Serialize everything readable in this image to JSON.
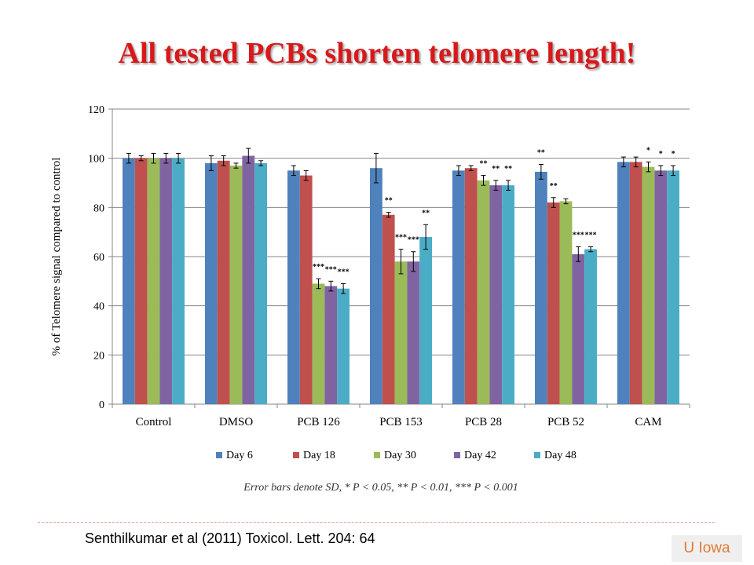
{
  "slide": {
    "title": "All tested PCBs shorten telomere length!",
    "note": "Error bars denote SD,   * P < 0.05, ** P < 0.01, *** P < 0.001",
    "citation": "Senthilkumar et al (2011) Toxicol. Lett. 204: 64",
    "badge": "U Iowa",
    "title_color": "#d7191c",
    "badge_color": "#e07a35"
  },
  "chart_data": {
    "type": "bar",
    "categories": [
      "Control",
      "DMSO",
      "PCB 126",
      "PCB 153",
      "PCB 28",
      "PCB 52",
      "CAM"
    ],
    "ylabel": "% of Telomere signal compared to control",
    "ylim": [
      0,
      120
    ],
    "yticks": [
      0,
      20,
      40,
      60,
      80,
      100,
      120
    ],
    "grid": true,
    "legend_position": "bottom",
    "series": [
      {
        "name": "Day 6",
        "color": "#4f81bd",
        "values": [
          100,
          98,
          95,
          96,
          95,
          94.5,
          98.5
        ],
        "errors": [
          2,
          3,
          2,
          6,
          2,
          3,
          2
        ],
        "labels": [
          "",
          "",
          "",
          "",
          "",
          "**",
          ""
        ]
      },
      {
        "name": "Day 18",
        "color": "#c0504d",
        "values": [
          100,
          99,
          93,
          77,
          96,
          82,
          98.5
        ],
        "errors": [
          1,
          2,
          2,
          1,
          1,
          2,
          2
        ],
        "labels": [
          "",
          "",
          "",
          "**",
          "",
          "**",
          ""
        ]
      },
      {
        "name": "Day 30",
        "color": "#9bbb59",
        "values": [
          100,
          97,
          49,
          58,
          91,
          82.5,
          96.5
        ],
        "errors": [
          2,
          1,
          2,
          5,
          2,
          1,
          2
        ],
        "labels": [
          "",
          "",
          "***",
          "***",
          "**",
          "",
          "*"
        ]
      },
      {
        "name": "Day 42",
        "color": "#8064a2",
        "values": [
          100,
          101,
          48,
          58,
          89,
          61,
          95
        ],
        "errors": [
          2,
          3,
          2,
          4,
          2,
          3,
          2
        ],
        "labels": [
          "",
          "",
          "***",
          "***",
          "**",
          "***",
          "*"
        ]
      },
      {
        "name": "Day 48",
        "color": "#4bacc6",
        "values": [
          100,
          98,
          47,
          68,
          89,
          63,
          95
        ],
        "errors": [
          2,
          1,
          2,
          5,
          2,
          1,
          2
        ],
        "labels": [
          "",
          "",
          "***",
          "**",
          "**",
          "***",
          "*"
        ]
      }
    ]
  }
}
